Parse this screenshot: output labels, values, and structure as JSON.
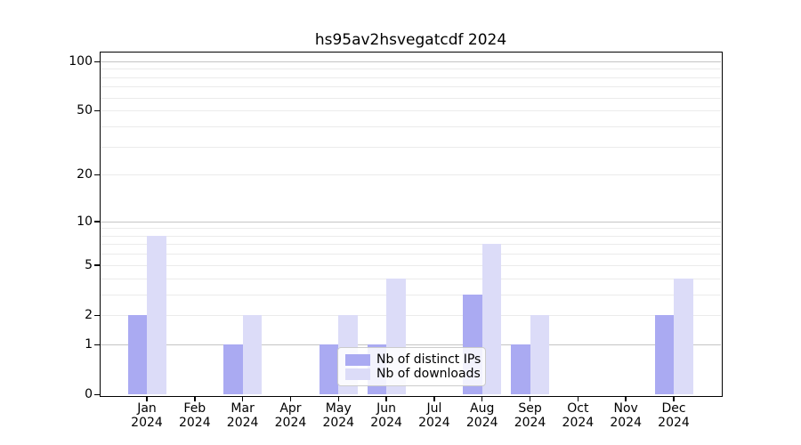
{
  "chart_data": {
    "type": "bar",
    "title": "hs95av2hsvegatcdf 2024",
    "categories": [
      "Jan",
      "Feb",
      "Mar",
      "Apr",
      "May",
      "Jun",
      "Jul",
      "Aug",
      "Sep",
      "Oct",
      "Nov",
      "Dec"
    ],
    "category_year": "2024",
    "series": [
      {
        "name": "Nb of distinct IPs",
        "key": "distinct-ips",
        "color": "#aaaaf2",
        "values": [
          2,
          0,
          1,
          0,
          1,
          1,
          0,
          3,
          1,
          0,
          0,
          2
        ]
      },
      {
        "name": "Nb of downloads",
        "key": "downloads",
        "color": "#dcdcf8",
        "values": [
          8,
          0,
          2,
          0,
          2,
          4,
          0,
          7,
          2,
          0,
          0,
          4
        ]
      }
    ],
    "yscale": "symlog-log1p",
    "y_ticks": [
      0,
      1,
      2,
      5,
      10,
      20,
      50,
      100
    ],
    "y_major_gridlines": [
      1,
      10,
      100
    ],
    "y_minor_gridlines": [
      2,
      3,
      4,
      5,
      6,
      7,
      8,
      9,
      20,
      30,
      40,
      50,
      60,
      70,
      80,
      90
    ],
    "ylim": [
      0,
      113
    ],
    "xlabel": "",
    "ylabel": "",
    "grid": true,
    "legend_position": "lower center"
  },
  "colors": {
    "background": "#ffffff",
    "axis": "#000000",
    "text": "#000000",
    "major_grid": "#c4c4c4",
    "minor_grid": "#ebebeb",
    "legend_border": "#cccccc"
  }
}
